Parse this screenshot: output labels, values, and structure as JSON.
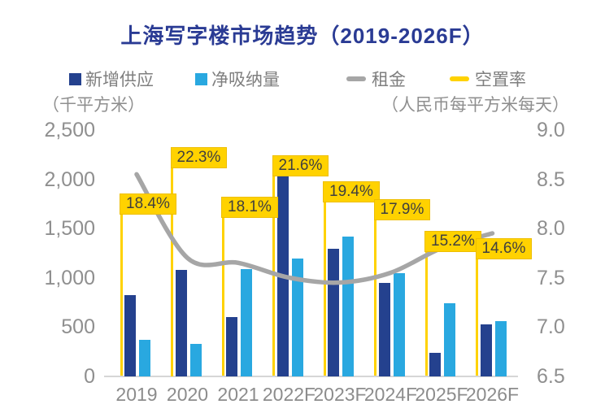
{
  "title": "上海写字楼市场趋势（2019-2026F）",
  "legend": [
    {
      "label": "新增供应",
      "swatch": "square",
      "color": "#24418E"
    },
    {
      "label": "净吸纳量",
      "swatch": "square",
      "color": "#29A8E0"
    },
    {
      "label": "租金",
      "swatch": "dash",
      "color": "#A6A6A6"
    },
    {
      "label": "空置率",
      "swatch": "dash",
      "color": "#FFD200"
    }
  ],
  "left_axis": {
    "unit": "（千平方米）",
    "ticks": [
      "2,500",
      "2,000",
      "1,500",
      "1,000",
      "500",
      "0"
    ]
  },
  "right_axis": {
    "unit": "（人民币每平方米每天）",
    "ticks": [
      "9.0",
      "8.5",
      "8.0",
      "7.5",
      "7.0",
      "6.5"
    ]
  },
  "colors": {
    "title": "#2A3B94",
    "new_supply": "#24418E",
    "net_absorption": "#29A8E0",
    "rent_line": "#A6A6A6",
    "vacancy": "#FFD200",
    "vacancy_label_bg": "#FFD200",
    "vacancy_label_text": "#3F3F3F",
    "axis_text": "#8F8F8F",
    "baseline": "#D6D6D6"
  },
  "chart_data": {
    "type": "bar",
    "subtype": "combo-bar-line",
    "categories": [
      "2019",
      "2020",
      "2021",
      "2022F",
      "2023F",
      "2024F",
      "2025F",
      "2026F"
    ],
    "series": [
      {
        "name": "新增供应",
        "type": "bar",
        "axis": "left",
        "values": [
          830,
          1080,
          600,
          2230,
          1300,
          950,
          240,
          530
        ]
      },
      {
        "name": "净吸纳量",
        "type": "bar",
        "axis": "left",
        "values": [
          370,
          330,
          1090,
          1200,
          1420,
          1050,
          740,
          560
        ]
      },
      {
        "name": "租金",
        "type": "line",
        "axis": "right",
        "values": [
          8.55,
          7.7,
          7.65,
          7.5,
          7.45,
          7.55,
          7.8,
          7.95
        ]
      },
      {
        "name": "空置率",
        "type": "vertical-marker",
        "axis": "hidden",
        "values": [
          18.4,
          22.3,
          18.1,
          21.6,
          19.4,
          17.9,
          15.2,
          14.6
        ],
        "labels": [
          "18.4%",
          "22.3%",
          "18.1%",
          "21.6%",
          "19.4%",
          "17.9%",
          "15.2%",
          "14.6%"
        ]
      }
    ],
    "title": "上海写字楼市场趋势（2019-2026F）",
    "ylabel_left": "（千平方米）",
    "ylabel_right": "（人民币每平方米每天）",
    "ylim_left": [
      0,
      2500
    ],
    "ylim_right": [
      6.5,
      9.0
    ],
    "grid": false,
    "legend_position": "top"
  }
}
